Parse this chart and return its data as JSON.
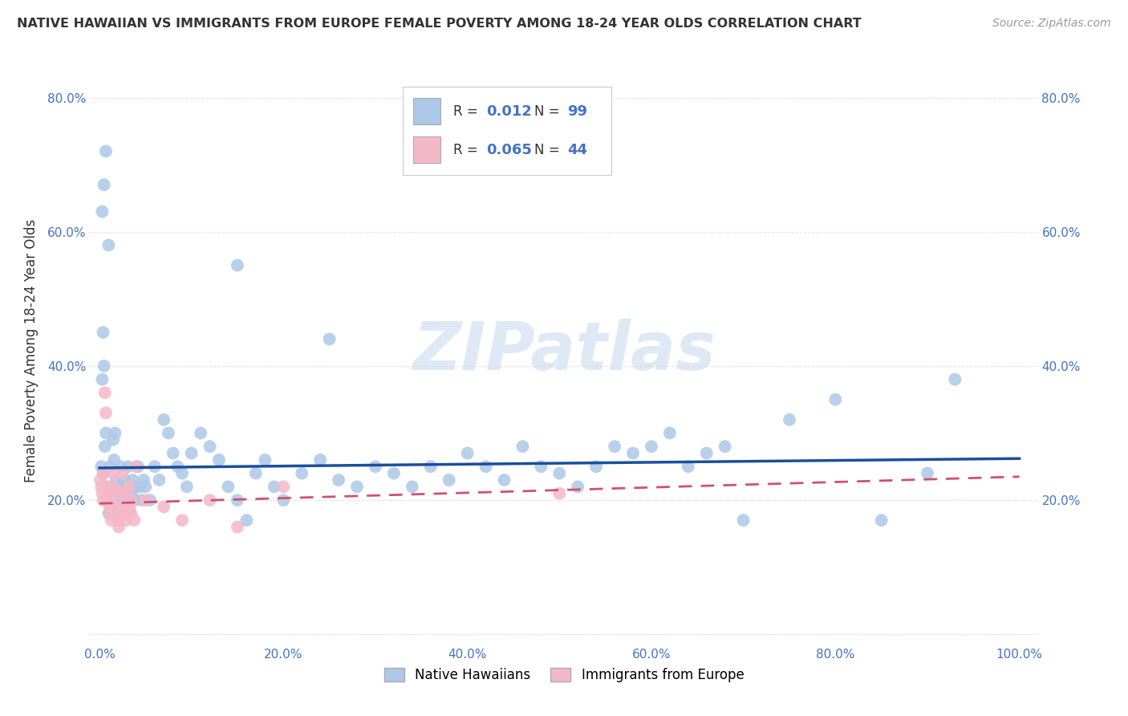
{
  "title": "NATIVE HAWAIIAN VS IMMIGRANTS FROM EUROPE FEMALE POVERTY AMONG 18-24 YEAR OLDS CORRELATION CHART",
  "source": "Source: ZipAtlas.com",
  "ylabel": "Female Poverty Among 18-24 Year Olds",
  "r_blue": 0.012,
  "n_blue": 99,
  "r_pink": 0.065,
  "n_pink": 44,
  "blue_color": "#adc8e8",
  "blue_line_color": "#1a4f9c",
  "pink_color": "#f5b8c8",
  "pink_line_color": "#d05070",
  "background_color": "#ffffff",
  "grid_color": "#cccccc",
  "watermark": "ZIPatlas",
  "blue_x": [
    0.004,
    0.006,
    0.007,
    0.008,
    0.009,
    0.01,
    0.011,
    0.012,
    0.013,
    0.014,
    0.015,
    0.016,
    0.017,
    0.018,
    0.019,
    0.02,
    0.021,
    0.022,
    0.023,
    0.024,
    0.025,
    0.026,
    0.027,
    0.028,
    0.029,
    0.03,
    0.031,
    0.032,
    0.033,
    0.034,
    0.035,
    0.036,
    0.038,
    0.04,
    0.042,
    0.044,
    0.046,
    0.048,
    0.05,
    0.055,
    0.06,
    0.065,
    0.07,
    0.075,
    0.08,
    0.085,
    0.09,
    0.095,
    0.1,
    0.11,
    0.12,
    0.13,
    0.14,
    0.15,
    0.16,
    0.17,
    0.18,
    0.19,
    0.2,
    0.22,
    0.24,
    0.26,
    0.28,
    0.3,
    0.32,
    0.34,
    0.36,
    0.38,
    0.4,
    0.42,
    0.44,
    0.46,
    0.48,
    0.5,
    0.52,
    0.54,
    0.56,
    0.58,
    0.6,
    0.62,
    0.64,
    0.66,
    0.68,
    0.7,
    0.75,
    0.8,
    0.85,
    0.9,
    0.93,
    0.003,
    0.005,
    0.007,
    0.01,
    0.15,
    0.25,
    0.002,
    0.003,
    0.004,
    0.005
  ],
  "blue_y": [
    0.24,
    0.28,
    0.3,
    0.22,
    0.2,
    0.18,
    0.25,
    0.22,
    0.19,
    0.21,
    0.29,
    0.26,
    0.3,
    0.23,
    0.2,
    0.17,
    0.19,
    0.22,
    0.25,
    0.21,
    0.2,
    0.19,
    0.23,
    0.21,
    0.19,
    0.22,
    0.25,
    0.22,
    0.2,
    0.18,
    0.21,
    0.23,
    0.2,
    0.22,
    0.25,
    0.22,
    0.2,
    0.23,
    0.22,
    0.2,
    0.25,
    0.23,
    0.32,
    0.3,
    0.27,
    0.25,
    0.24,
    0.22,
    0.27,
    0.3,
    0.28,
    0.26,
    0.22,
    0.2,
    0.17,
    0.24,
    0.26,
    0.22,
    0.2,
    0.24,
    0.26,
    0.23,
    0.22,
    0.25,
    0.24,
    0.22,
    0.25,
    0.23,
    0.27,
    0.25,
    0.23,
    0.28,
    0.25,
    0.24,
    0.22,
    0.25,
    0.28,
    0.27,
    0.28,
    0.3,
    0.25,
    0.27,
    0.28,
    0.17,
    0.32,
    0.35,
    0.17,
    0.24,
    0.38,
    0.63,
    0.67,
    0.72,
    0.58,
    0.55,
    0.44,
    0.25,
    0.38,
    0.45,
    0.4
  ],
  "pink_x": [
    0.001,
    0.002,
    0.003,
    0.004,
    0.005,
    0.006,
    0.007,
    0.008,
    0.009,
    0.01,
    0.011,
    0.012,
    0.013,
    0.014,
    0.015,
    0.016,
    0.017,
    0.018,
    0.019,
    0.02,
    0.021,
    0.022,
    0.023,
    0.024,
    0.025,
    0.026,
    0.027,
    0.028,
    0.029,
    0.03,
    0.031,
    0.032,
    0.033,
    0.034,
    0.035,
    0.038,
    0.04,
    0.05,
    0.07,
    0.09,
    0.12,
    0.15,
    0.2,
    0.5
  ],
  "pink_y": [
    0.23,
    0.22,
    0.21,
    0.2,
    0.24,
    0.36,
    0.33,
    0.22,
    0.21,
    0.2,
    0.19,
    0.18,
    0.17,
    0.19,
    0.22,
    0.24,
    0.21,
    0.19,
    0.18,
    0.17,
    0.16,
    0.18,
    0.19,
    0.21,
    0.24,
    0.21,
    0.19,
    0.18,
    0.17,
    0.19,
    0.2,
    0.22,
    0.19,
    0.18,
    0.2,
    0.17,
    0.25,
    0.2,
    0.19,
    0.17,
    0.2,
    0.16,
    0.22,
    0.21
  ],
  "blue_line_x": [
    0.0,
    1.0
  ],
  "blue_line_y": [
    0.248,
    0.262
  ],
  "pink_line_x": [
    0.0,
    1.0
  ],
  "pink_line_y": [
    0.195,
    0.235
  ],
  "xlim": [
    -0.01,
    1.02
  ],
  "ylim": [
    -0.015,
    0.86
  ],
  "xticks": [
    0.0,
    0.2,
    0.4,
    0.6,
    0.8,
    1.0
  ],
  "xtick_labels": [
    "0.0%",
    "20.0%",
    "40.0%",
    "60.0%",
    "80.0%",
    "100.0%"
  ],
  "yticks": [
    0.0,
    0.2,
    0.4,
    0.6,
    0.8
  ],
  "ytick_labels": [
    "",
    "20.0%",
    "40.0%",
    "60.0%",
    "80.0%"
  ]
}
